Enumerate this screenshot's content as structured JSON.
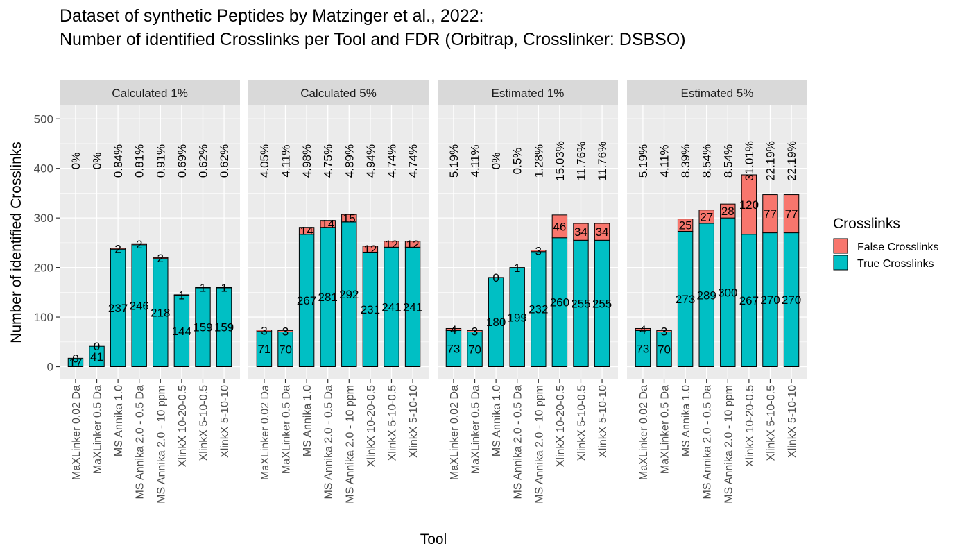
{
  "chart_data": {
    "type": "bar",
    "stacked": true,
    "title": [
      "Dataset of synthetic Peptides by Matzinger et al., 2022:",
      "Number of identified Crosslinks per Tool and FDR (Orbitrap, Crosslinker: DSBSO)"
    ],
    "xlabel": "Tool",
    "ylabel": "Number of identified Crosslinks",
    "ylim": [
      0,
      520
    ],
    "yticks": [
      0,
      100,
      200,
      300,
      400,
      500
    ],
    "grid": true,
    "legend": {
      "title": "Crosslinks",
      "position": "right",
      "entries": [
        "False Crosslinks",
        "True Crosslinks"
      ]
    },
    "colors": {
      "False Crosslinks": "#F8766D",
      "True Crosslinks": "#00BFC4"
    },
    "categories": [
      "MaXLinker 0.02 Da",
      "MaXLinker 0.5 Da",
      "MS Annika 1.0",
      "MS Annika 2.0 - 0.5 Da",
      "MS Annika 2.0 - 10 ppm",
      "XlinkX 10-20-0.5",
      "XlinkX 5-10-0.5",
      "XlinkX 5-10-10"
    ],
    "panels": [
      {
        "facet": "Calculated 1%",
        "true_values": [
          17,
          41,
          237,
          246,
          218,
          144,
          159,
          159
        ],
        "false_values": [
          0,
          0,
          2,
          2,
          2,
          1,
          1,
          1
        ],
        "fdr_labels": [
          "0%",
          "0%",
          "0.84%",
          "0.81%",
          "0.91%",
          "0.69%",
          "0.62%",
          "0.62%"
        ]
      },
      {
        "facet": "Calculated 5%",
        "true_values": [
          71,
          70,
          267,
          281,
          292,
          231,
          241,
          241
        ],
        "false_values": [
          3,
          3,
          14,
          14,
          15,
          12,
          12,
          12
        ],
        "fdr_labels": [
          "4.05%",
          "4.11%",
          "4.98%",
          "4.75%",
          "4.89%",
          "4.94%",
          "4.74%",
          "4.74%"
        ]
      },
      {
        "facet": "Estimated 1%",
        "true_values": [
          73,
          70,
          180,
          199,
          232,
          260,
          255,
          255
        ],
        "false_values": [
          4,
          3,
          0,
          1,
          3,
          46,
          34,
          34
        ],
        "fdr_labels": [
          "5.19%",
          "4.11%",
          "0%",
          "0.5%",
          "1.28%",
          "15.03%",
          "11.76%",
          "11.76%"
        ]
      },
      {
        "facet": "Estimated 5%",
        "true_values": [
          73,
          70,
          273,
          289,
          300,
          267,
          270,
          270
        ],
        "false_values": [
          4,
          3,
          25,
          27,
          28,
          120,
          77,
          77
        ],
        "fdr_labels": [
          "5.19%",
          "4.11%",
          "8.39%",
          "8.54%",
          "8.54%",
          "31.01%",
          "22.19%",
          "22.19%"
        ]
      }
    ]
  }
}
